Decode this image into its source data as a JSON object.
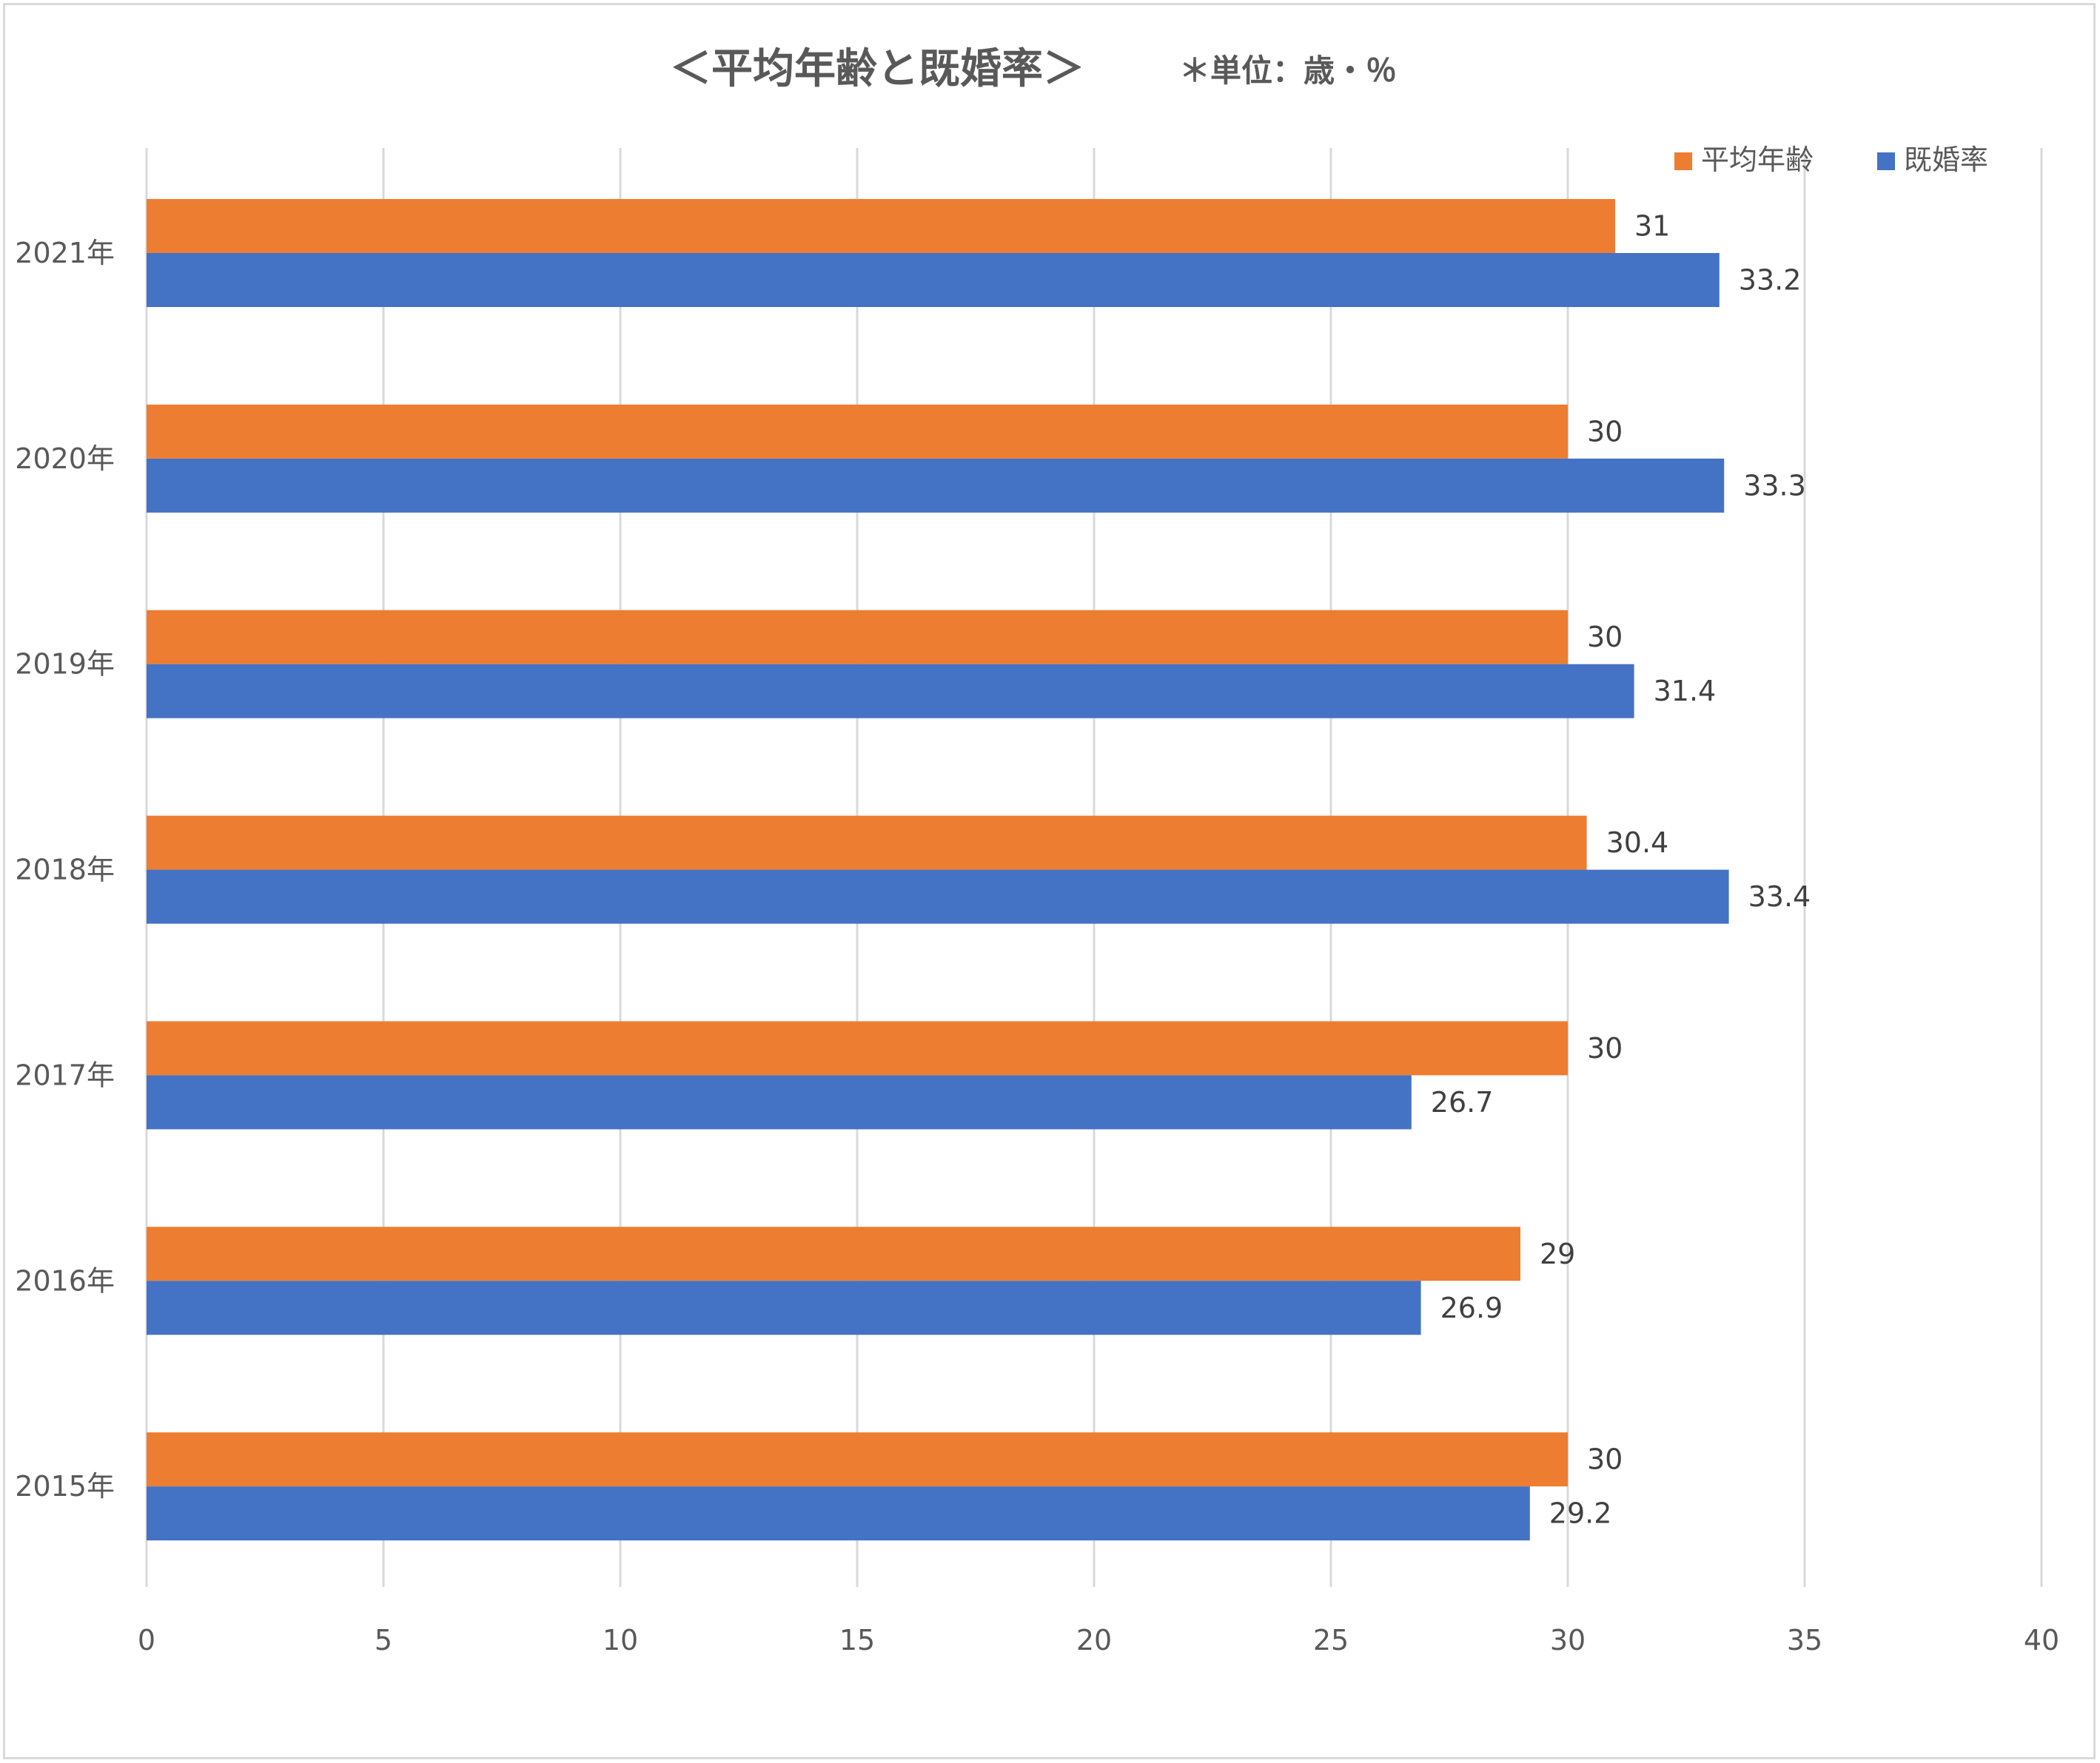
{
  "chart_data": {
    "type": "bar",
    "orientation": "horizontal",
    "title": "＜平均年齢と既婚率＞",
    "subtitle": "＊単位：歳・％",
    "categories": [
      "2021年",
      "2020年",
      "2019年",
      "2018年",
      "2017年",
      "2016年",
      "2015年"
    ],
    "series": [
      {
        "name": "平均年齢",
        "color": "#ED7D31",
        "values": [
          31,
          30,
          30,
          30.4,
          30,
          29,
          30
        ]
      },
      {
        "name": "既婚率",
        "color": "#4472C4",
        "values": [
          33.2,
          33.3,
          31.4,
          33.4,
          26.7,
          26.9,
          29.2
        ]
      }
    ],
    "xlim": [
      0,
      40
    ],
    "xticks": [
      "0",
      "5",
      "10",
      "15",
      "20",
      "25",
      "30",
      "35",
      "40"
    ],
    "grid": true,
    "legend_position": "top-right",
    "data_labels": true
  }
}
